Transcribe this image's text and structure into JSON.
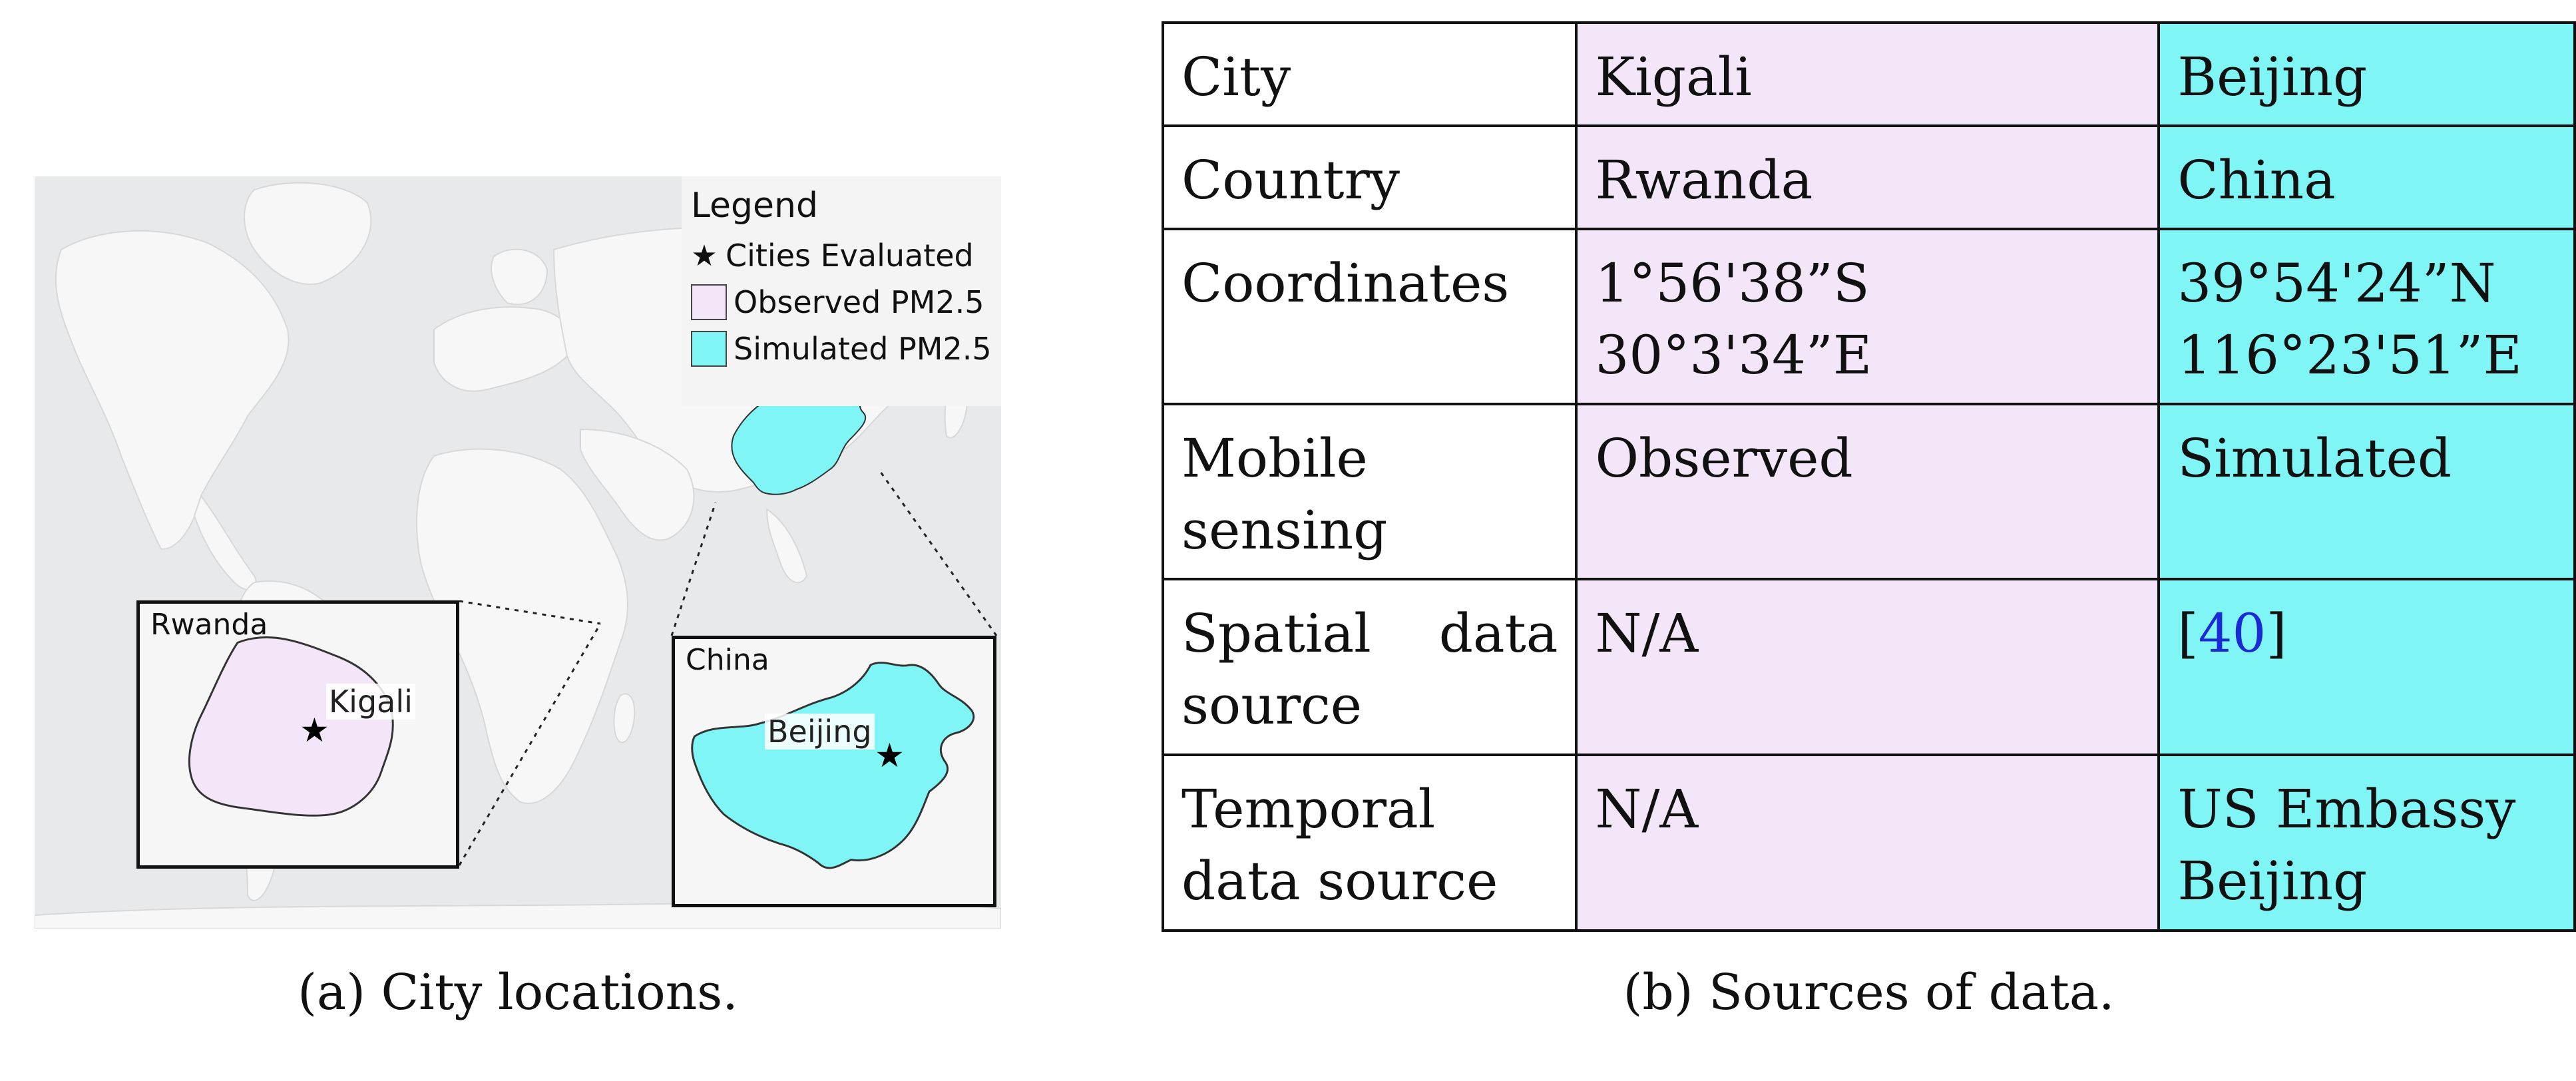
{
  "figure_a": {
    "caption": "(a) City locations.",
    "legend": {
      "title": "Legend",
      "star_glyph": "★",
      "cities_label": "Cities Evaluated",
      "observed_label": "Observed PM2.5",
      "simulated_label": "Simulated PM2.5"
    },
    "inset_rwanda": {
      "title": "Rwanda",
      "city": "Kigali"
    },
    "inset_china": {
      "title": "China",
      "city": "Beijing"
    },
    "colors": {
      "observed": "#f3e6f8",
      "simulated": "#7ff5f5",
      "ocean": "#e8e9ea",
      "land": "#f7f7f7"
    }
  },
  "figure_b": {
    "caption": "(b) Sources of data.",
    "rows": [
      {
        "label": "City",
        "kigali": "Kigali",
        "beijing": "Beijing"
      },
      {
        "label": "Country",
        "kigali": "Rwanda",
        "beijing": "China"
      },
      {
        "label": "Coordinates",
        "kigali_line1": "1°56'38”S",
        "kigali_line2": "30°3'34”E",
        "beijing_line1": "39°54'24”N",
        "beijing_line2": "116°23'51”E"
      },
      {
        "label_line1": "Mobile",
        "label_line2": "sensing",
        "kigali": "Observed",
        "beijing": "Simulated"
      },
      {
        "label_line1a": "Spatial",
        "label_line1b": "data",
        "label_line2": "source",
        "kigali": "N/A",
        "beijing_cite": "40",
        "bracket_open": "[",
        "bracket_close": "]"
      },
      {
        "label_line1": "Temporal",
        "label_line2": "data source",
        "kigali": "N/A",
        "beijing_line1": "US Embassy",
        "beijing_line2": "Beijing"
      }
    ]
  }
}
